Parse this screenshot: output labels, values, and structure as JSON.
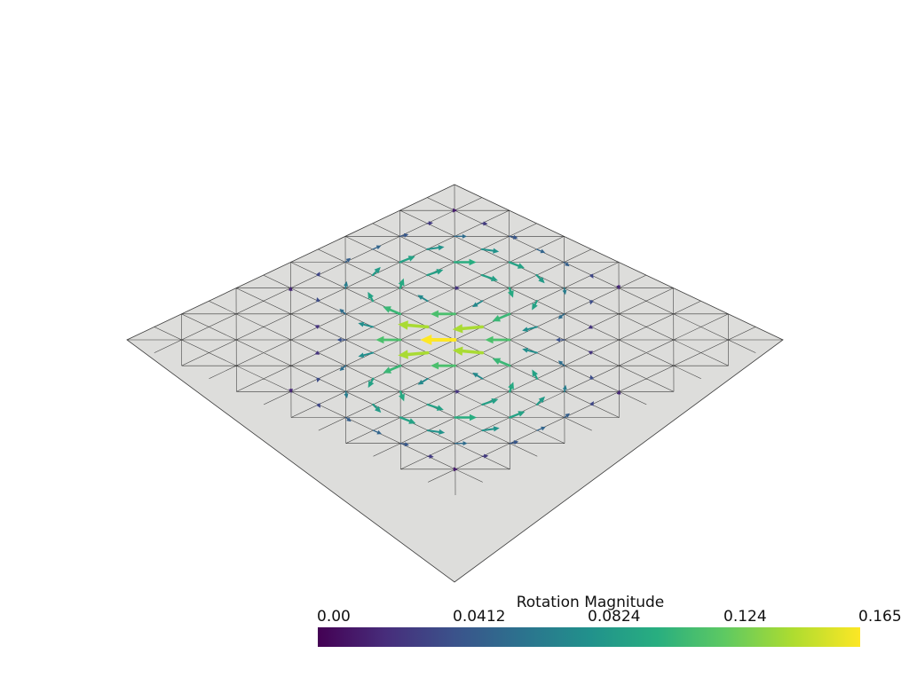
{
  "colorbar": {
    "title": "Rotation Magnitude",
    "ticks": [
      "0.00",
      "0.0412",
      "0.0824",
      "0.124",
      "0.165"
    ],
    "min": 0.0,
    "max": 0.165,
    "colormap": "viridis"
  },
  "mesh": {
    "subdivisions": 12,
    "fill_color": "#dddddb",
    "edge_color": "#3a3a3a"
  },
  "vector_field": {
    "type": "two counter-rotating vortices",
    "glyph": "arrow",
    "color_by": "Rotation Magnitude"
  }
}
